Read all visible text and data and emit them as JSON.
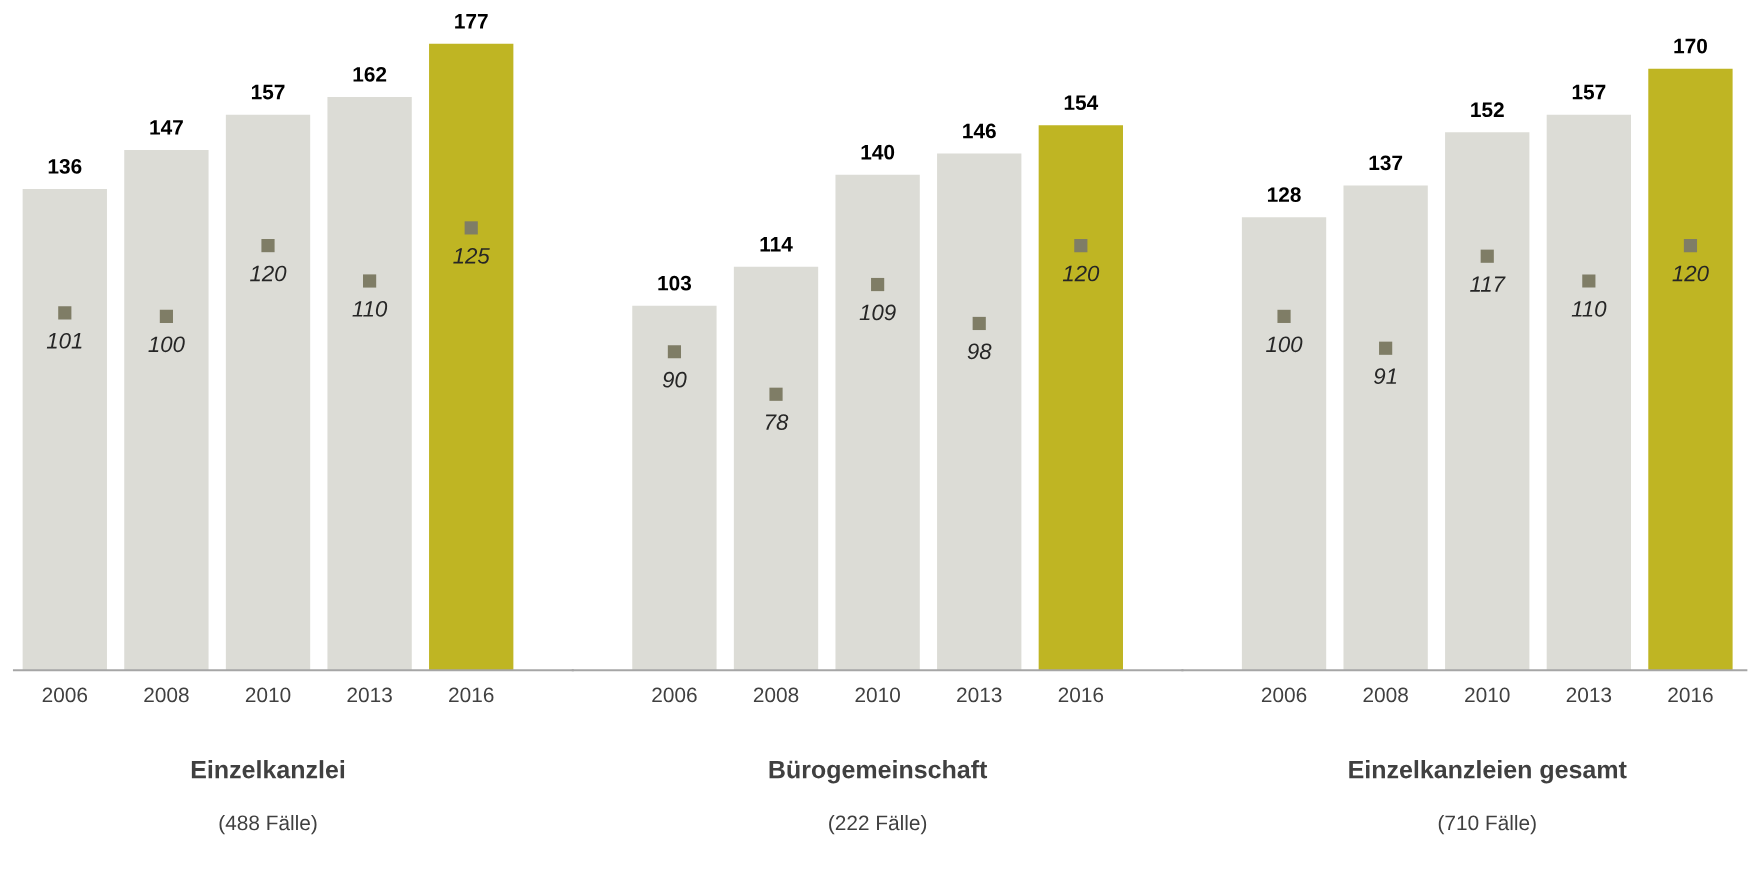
{
  "chart_data": [
    {
      "type": "bar",
      "categories": [
        "2006",
        "2008",
        "2010",
        "2013",
        "2016"
      ],
      "xlabel": "Einzelkanzlei",
      "annotations": [
        "(488 Fälle)"
      ],
      "tick_labels": "x",
      "series": [
        {
          "type": "bar",
          "colors": [
            "#dcdcd6",
            "#dcdcd6",
            "#dcdcd6",
            "#dcdcd6",
            "#bfb523"
          ],
          "values": [
            136,
            147,
            157,
            162,
            177
          ],
          "data_labels": true
        },
        {
          "type": "scatter",
          "marker": "square",
          "color": "#7f7d66",
          "values": [
            101,
            100,
            120,
            110,
            125
          ],
          "value_labels": [
            "101",
            "100",
            "120",
            "110",
            "125"
          ]
        }
      ]
    },
    {
      "type": "bar",
      "categories": [
        "2006",
        "2008",
        "2010",
        "2013",
        "2016"
      ],
      "xlabel": "Bürogemeinschaft",
      "annotations": [
        "(222 Fälle)"
      ],
      "tick_labels": "x",
      "series": [
        {
          "type": "bar",
          "colors": [
            "#dcdcd6",
            "#dcdcd6",
            "#dcdcd6",
            "#dcdcd6",
            "#bfb523"
          ],
          "values": [
            103,
            114,
            140,
            146,
            154
          ],
          "data_labels": true
        },
        {
          "type": "scatter",
          "marker": "square",
          "color": "#7f7d66",
          "values": [
            90,
            78,
            109,
            98,
            120
          ],
          "value_labels": [
            "90",
            "78",
            "109",
            "98",
            "120"
          ]
        }
      ]
    },
    {
      "type": "bar",
      "categories": [
        "2006",
        "2008",
        "2010",
        "2013",
        "2016"
      ],
      "xlabel": "Einzelkanzleien gesamt",
      "annotations": [
        "(710 Fälle)"
      ],
      "tick_labels": "x",
      "series": [
        {
          "type": "bar",
          "colors": [
            "#dcdcd6",
            "#dcdcd6",
            "#dcdcd6",
            "#dcdcd6",
            "#bfb523"
          ],
          "values": [
            128,
            137,
            152,
            157,
            170
          ],
          "data_labels": true
        },
        {
          "type": "scatter",
          "marker": "square",
          "color": "#7f7d66",
          "values": [
            100,
            91,
            117,
            110,
            120
          ],
          "value_labels": [
            "100",
            "91",
            "117",
            "110",
            "120"
          ]
        }
      ]
    }
  ]
}
